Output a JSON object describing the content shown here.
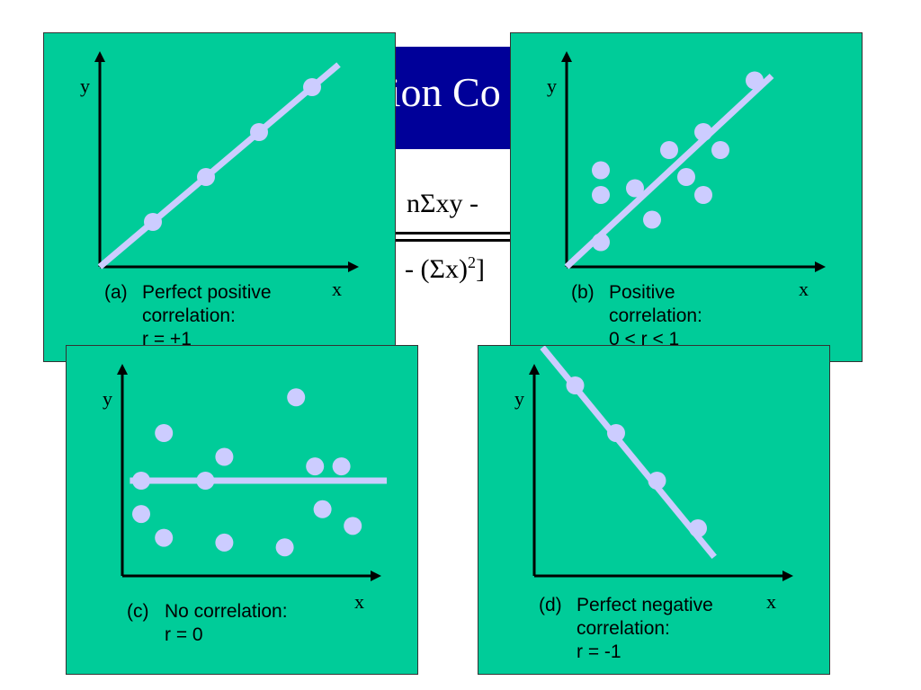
{
  "title": {
    "visible_text": "tion Co"
  },
  "formula": {
    "numerator_fragment": "nΣxy -",
    "denominator_fragment": "- (Σx)",
    "denominator_exp": "2",
    "denominator_close": "]"
  },
  "colors": {
    "panel_bg": "#00cc99",
    "line": "#ccccff",
    "point": "#ccccff",
    "axis": "#000000",
    "title_bg": "#000099"
  },
  "panels": {
    "a": {
      "y_label": "y",
      "x_label": "x",
      "caption_tag": "(a)",
      "caption_lines": [
        "Perfect positive",
        "correlation:",
        "r = +1"
      ],
      "chart_data": {
        "type": "scatter",
        "points": [
          [
            1,
            1
          ],
          [
            2,
            2
          ],
          [
            3,
            3
          ],
          [
            4,
            4
          ]
        ],
        "fit_line": [
          [
            0,
            0
          ],
          [
            4.5,
            4.5
          ]
        ]
      }
    },
    "b": {
      "y_label": "y",
      "x_label": "x",
      "caption_tag": "(b)",
      "caption_lines": [
        "Positive",
        "correlation:",
        "0 < r < 1"
      ],
      "chart_data": {
        "type": "scatter",
        "points": [
          [
            1,
            4.3
          ],
          [
            1,
            3.2
          ],
          [
            1,
            1.1
          ],
          [
            2,
            3.5
          ],
          [
            2.5,
            2.1
          ],
          [
            3,
            5.2
          ],
          [
            3.5,
            4
          ],
          [
            4,
            6
          ],
          [
            4,
            3.2
          ],
          [
            4.5,
            5.2
          ],
          [
            5.5,
            8.3
          ]
        ],
        "fit_line": [
          [
            0,
            0
          ],
          [
            6,
            8.5
          ]
        ]
      }
    },
    "c": {
      "y_label": "y",
      "x_label": "x",
      "caption_tag": "(c)",
      "caption_lines": [
        "No correlation:",
        "r = 0"
      ],
      "chart_data": {
        "type": "scatter",
        "points": [
          [
            0.5,
            4
          ],
          [
            1.1,
            6
          ],
          [
            2.2,
            4
          ],
          [
            2.7,
            5
          ],
          [
            4.6,
            7.5
          ],
          [
            5.1,
            4.6
          ],
          [
            5.8,
            4.6
          ],
          [
            0.5,
            2.6
          ],
          [
            1.1,
            1.6
          ],
          [
            2.7,
            1.4
          ],
          [
            4.3,
            1.2
          ],
          [
            5.3,
            2.8
          ],
          [
            6.1,
            2.1
          ]
        ],
        "fit_line": [
          [
            0.2,
            4
          ],
          [
            7,
            4
          ]
        ]
      }
    },
    "d": {
      "y_label": "y",
      "x_label": "x",
      "caption_tag": "(d)",
      "caption_lines": [
        "Perfect negative",
        "correlation:",
        "r = -1"
      ],
      "chart_data": {
        "type": "scatter",
        "points": [
          [
            1,
            4
          ],
          [
            2,
            3
          ],
          [
            3,
            2
          ],
          [
            4,
            1
          ]
        ],
        "fit_line": [
          [
            0.2,
            4.8
          ],
          [
            4.4,
            0.4
          ]
        ]
      }
    }
  }
}
